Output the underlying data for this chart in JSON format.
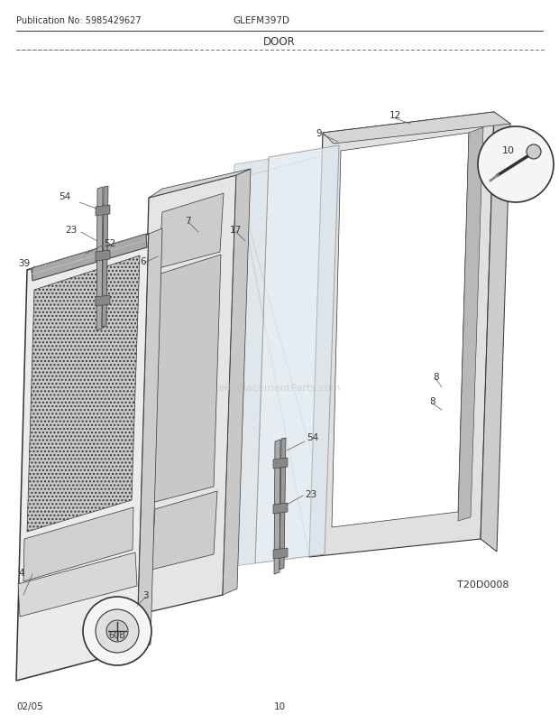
{
  "title_left": "Publication No: 5985429627",
  "title_center": "GLEFM397D",
  "subtitle": "DOOR",
  "footer_left": "02/05",
  "footer_center": "10",
  "diagram_code": "T20D0008",
  "bg_color": "#ffffff",
  "line_color": "#333333",
  "text_color": "#333333",
  "watermark": "eReplacementParts.com"
}
